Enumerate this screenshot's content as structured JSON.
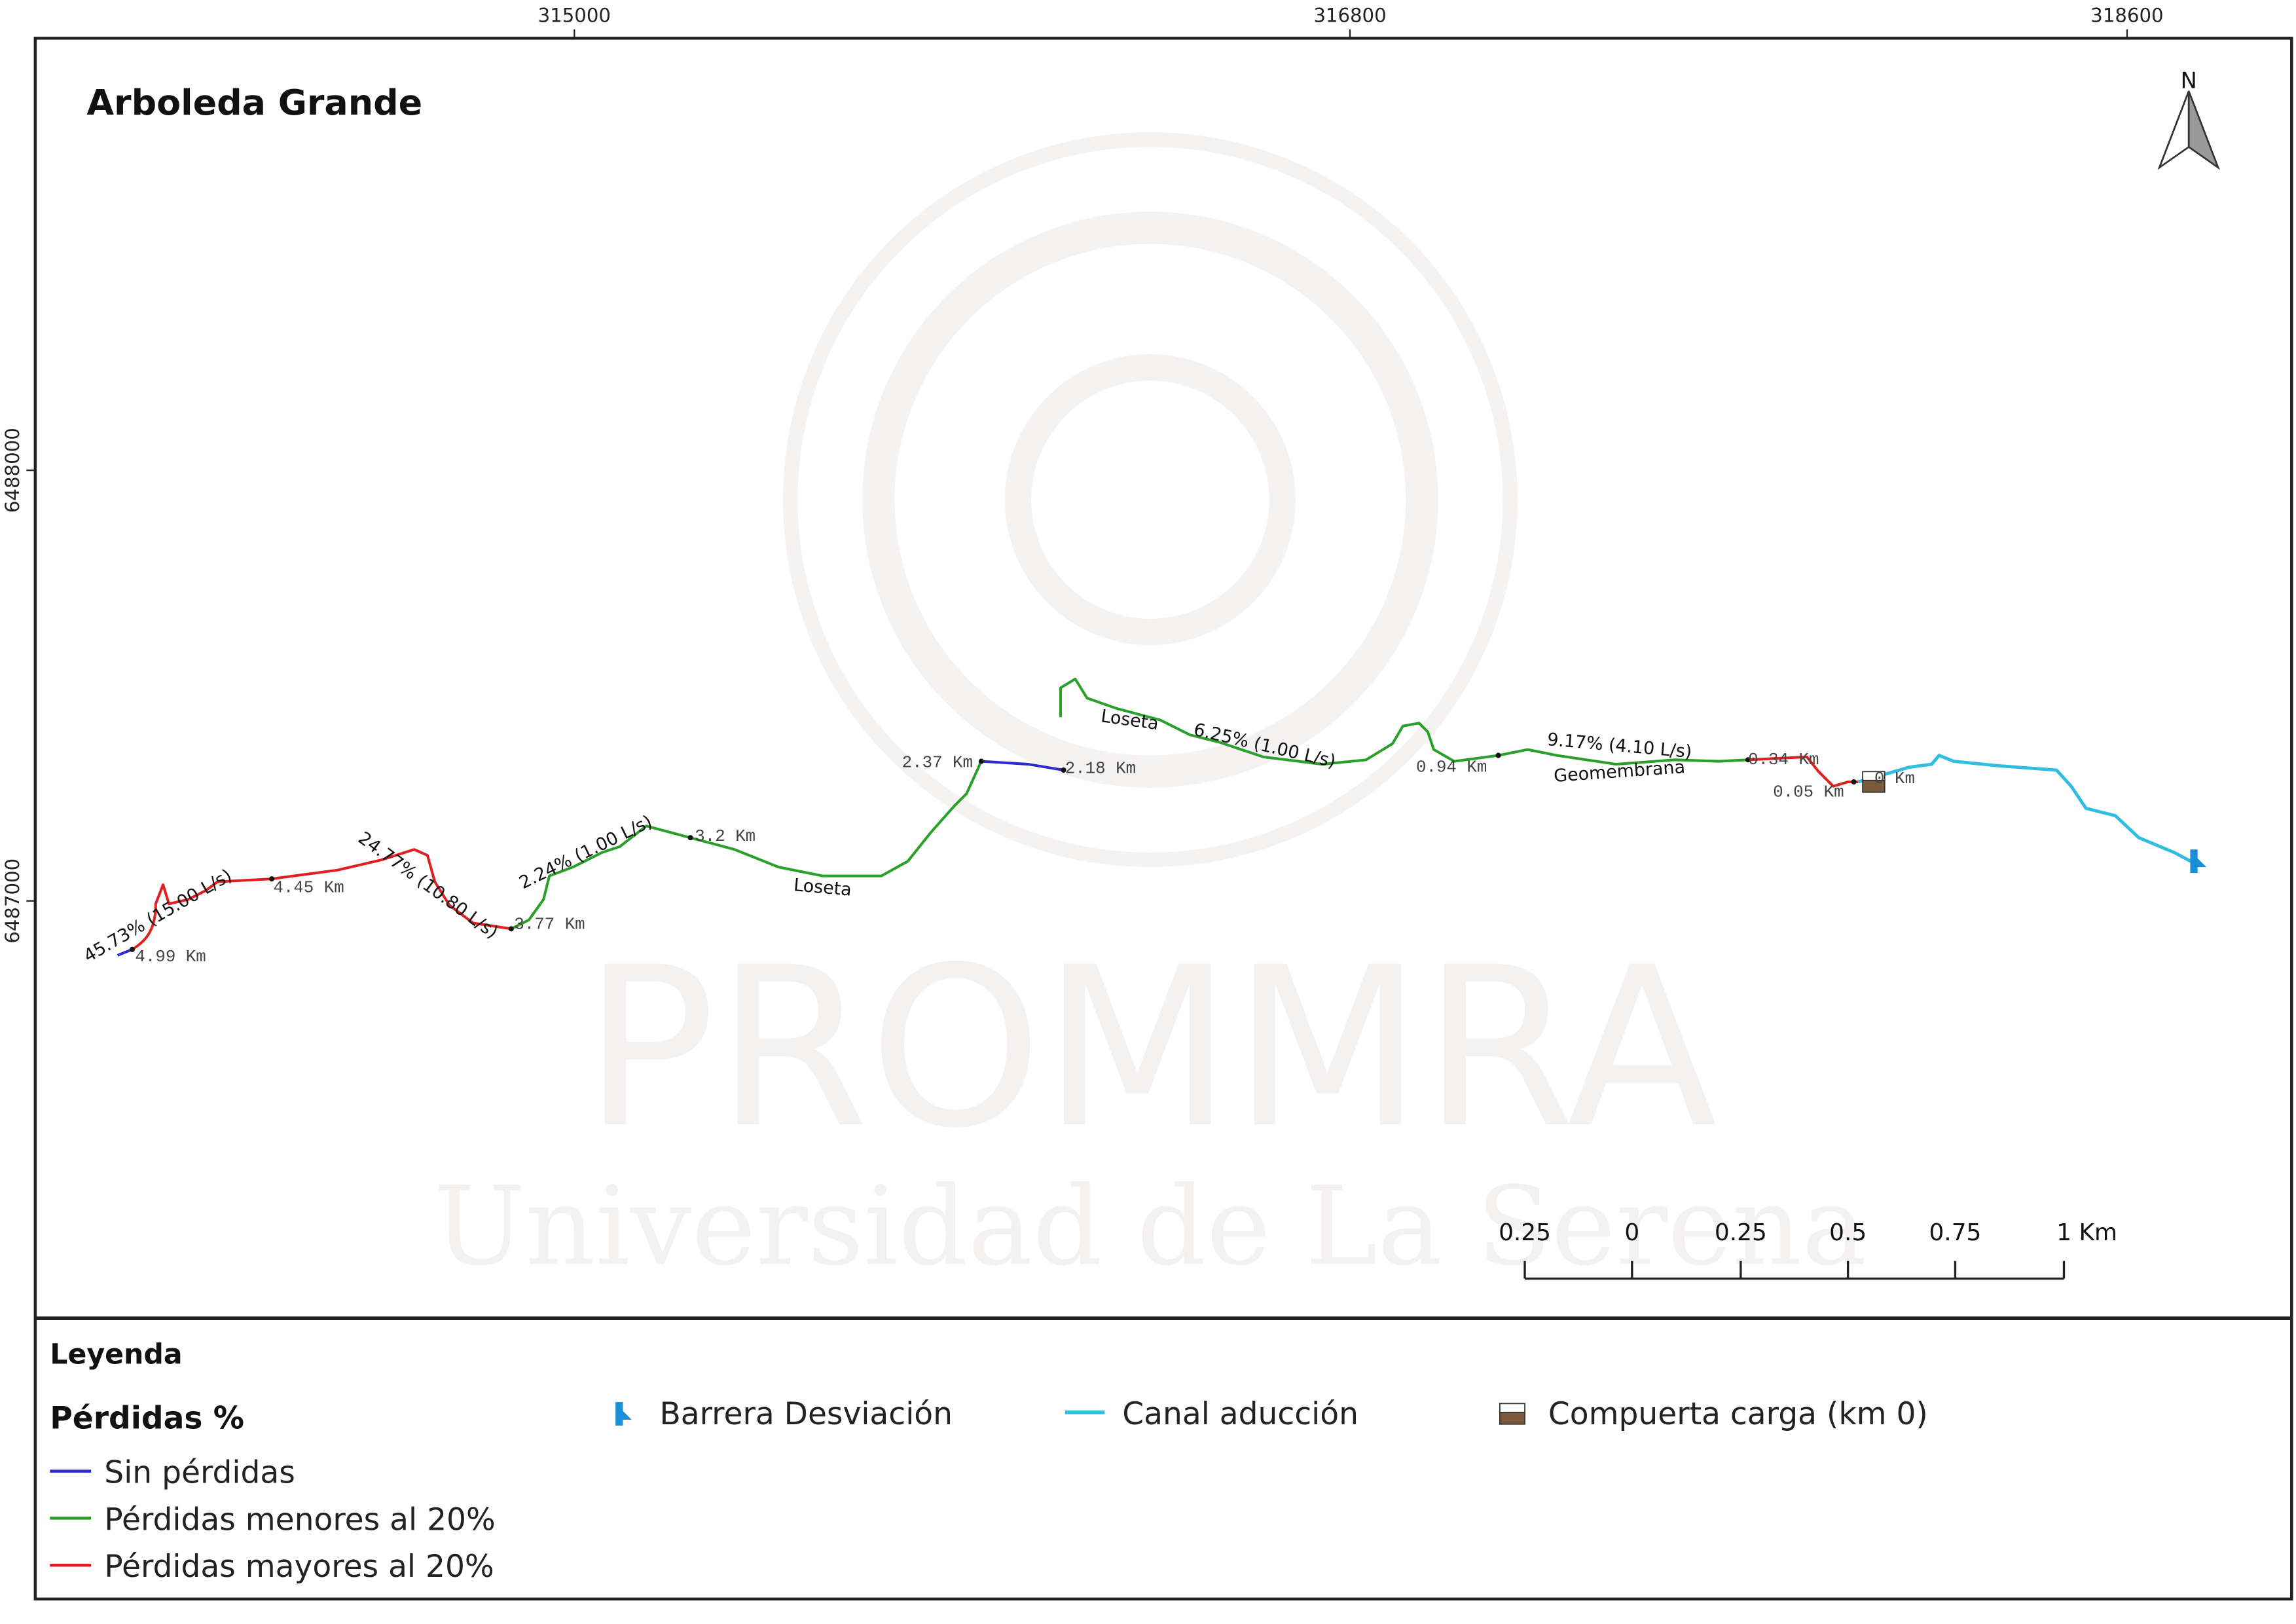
{
  "title": "Arboleda Grande",
  "north": "N",
  "grid_labels": {
    "top": [
      "315000",
      "316800",
      "318600"
    ],
    "left": [
      "6488000",
      "6487000"
    ]
  },
  "km_labels": [
    "4.99 Km",
    "4.45 Km",
    "3.77 Km",
    "3.2 Km",
    "2.37 Km",
    "2.18 Km",
    "0.94 Km",
    "0.34 Km",
    "0.05 Km",
    "0 Km"
  ],
  "segment_labels": [
    "45.73% (15.00 L/s)",
    "24.77% (10.80 L/s)",
    "2.24% (1.00 L/s)",
    "Loseta",
    "Loseta",
    "6.25% (1.00 L/s)",
    "9.17% (4.10 L/s)",
    "Geomembrana"
  ],
  "scale_bar": [
    "0.25",
    "0",
    "0.25",
    "0.5",
    "0.75",
    "1 Km"
  ],
  "watermark": [
    "PROMMRA",
    "Universidad de La Serena"
  ],
  "legend": {
    "title": "Leyenda",
    "group": "Pérdidas %",
    "items": [
      "Sin pérdidas",
      "Pérdidas menores al 20%",
      "Pérdidas mayores al 20%"
    ],
    "symbols": [
      "Barrera Desviación",
      "Canal aducción",
      "Compuerta carga (km 0)"
    ]
  }
}
